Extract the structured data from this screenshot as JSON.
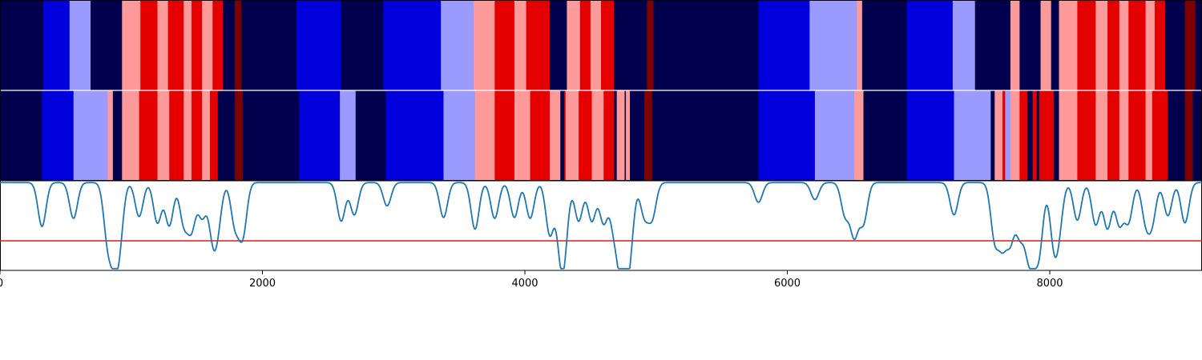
{
  "chart_data": {
    "type": "heatmap",
    "xlim": [
      0,
      9160
    ],
    "x_ticks": [
      "0",
      "2000",
      "4000",
      "6000",
      "8000"
    ],
    "x_tick_values": [
      0,
      2000,
      4000,
      6000,
      8000
    ],
    "segment_palette": {
      "0": "#00004c",
      "1": "#0000dd",
      "2": "#9a9aff",
      "3": "#ff9a9a",
      "4": "#e50000",
      "5": "#7f0000"
    },
    "rows": [
      {
        "segments": [
          [
            0,
            330,
            0
          ],
          [
            330,
            530,
            1
          ],
          [
            530,
            690,
            2
          ],
          [
            690,
            930,
            0
          ],
          [
            930,
            1070,
            3
          ],
          [
            1070,
            1200,
            4
          ],
          [
            1200,
            1280,
            3
          ],
          [
            1280,
            1400,
            4
          ],
          [
            1400,
            1460,
            3
          ],
          [
            1460,
            1540,
            4
          ],
          [
            1540,
            1620,
            3
          ],
          [
            1620,
            1700,
            4
          ],
          [
            1700,
            1790,
            0
          ],
          [
            1790,
            1840,
            5
          ],
          [
            1840,
            2260,
            0
          ],
          [
            2260,
            2600,
            1
          ],
          [
            2600,
            2920,
            0
          ],
          [
            2920,
            3360,
            1
          ],
          [
            3360,
            3610,
            2
          ],
          [
            3610,
            3770,
            3
          ],
          [
            3770,
            3920,
            4
          ],
          [
            3920,
            4010,
            3
          ],
          [
            4010,
            4190,
            4
          ],
          [
            4190,
            4320,
            0
          ],
          [
            4320,
            4420,
            3
          ],
          [
            4420,
            4500,
            4
          ],
          [
            4500,
            4580,
            3
          ],
          [
            4580,
            4680,
            4
          ],
          [
            4680,
            4930,
            0
          ],
          [
            4930,
            4980,
            5
          ],
          [
            4980,
            5780,
            0
          ],
          [
            5780,
            6170,
            1
          ],
          [
            6170,
            6530,
            2
          ],
          [
            6530,
            6570,
            3
          ],
          [
            6570,
            6910,
            0
          ],
          [
            6910,
            7260,
            1
          ],
          [
            7260,
            7430,
            2
          ],
          [
            7430,
            7700,
            0
          ],
          [
            7700,
            7770,
            3
          ],
          [
            7770,
            7930,
            0
          ],
          [
            7930,
            8010,
            3
          ],
          [
            8010,
            8070,
            0
          ],
          [
            8070,
            8210,
            3
          ],
          [
            8210,
            8350,
            4
          ],
          [
            8350,
            8440,
            3
          ],
          [
            8440,
            8530,
            4
          ],
          [
            8530,
            8600,
            3
          ],
          [
            8600,
            8730,
            4
          ],
          [
            8730,
            8800,
            3
          ],
          [
            8800,
            8880,
            4
          ],
          [
            8880,
            9030,
            0
          ],
          [
            9030,
            9110,
            5
          ],
          [
            9110,
            9160,
            0
          ]
        ]
      },
      {
        "segments": [
          [
            0,
            320,
            0
          ],
          [
            320,
            560,
            1
          ],
          [
            560,
            820,
            2
          ],
          [
            820,
            860,
            3
          ],
          [
            860,
            930,
            0
          ],
          [
            930,
            1060,
            3
          ],
          [
            1060,
            1200,
            4
          ],
          [
            1200,
            1290,
            3
          ],
          [
            1290,
            1400,
            4
          ],
          [
            1400,
            1460,
            3
          ],
          [
            1460,
            1540,
            4
          ],
          [
            1540,
            1600,
            3
          ],
          [
            1600,
            1660,
            4
          ],
          [
            1660,
            1790,
            0
          ],
          [
            1790,
            1850,
            5
          ],
          [
            1850,
            2280,
            0
          ],
          [
            2280,
            2590,
            1
          ],
          [
            2590,
            2710,
            2
          ],
          [
            2710,
            2940,
            0
          ],
          [
            2940,
            3380,
            1
          ],
          [
            3380,
            3620,
            2
          ],
          [
            3620,
            3770,
            3
          ],
          [
            3770,
            3920,
            4
          ],
          [
            3920,
            4040,
            3
          ],
          [
            4040,
            4190,
            4
          ],
          [
            4190,
            4270,
            3
          ],
          [
            4270,
            4300,
            0
          ],
          [
            4300,
            4310,
            4
          ],
          [
            4310,
            4410,
            3
          ],
          [
            4410,
            4510,
            4
          ],
          [
            4510,
            4600,
            3
          ],
          [
            4600,
            4680,
            4
          ],
          [
            4680,
            4700,
            0
          ],
          [
            4700,
            4760,
            3
          ],
          [
            4760,
            4770,
            0
          ],
          [
            4770,
            4800,
            3
          ],
          [
            4800,
            4910,
            0
          ],
          [
            4910,
            4970,
            5
          ],
          [
            4970,
            5780,
            0
          ],
          [
            5780,
            6210,
            1
          ],
          [
            6210,
            6510,
            2
          ],
          [
            6510,
            6580,
            3
          ],
          [
            6580,
            6910,
            0
          ],
          [
            6910,
            7270,
            1
          ],
          [
            7270,
            7550,
            2
          ],
          [
            7550,
            7580,
            0
          ],
          [
            7580,
            7640,
            3
          ],
          [
            7640,
            7660,
            4
          ],
          [
            7660,
            7700,
            2
          ],
          [
            7700,
            7770,
            3
          ],
          [
            7770,
            7830,
            4
          ],
          [
            7830,
            7870,
            0
          ],
          [
            7870,
            7900,
            4
          ],
          [
            7900,
            7920,
            0
          ],
          [
            7920,
            8030,
            4
          ],
          [
            8030,
            8070,
            0
          ],
          [
            8070,
            8210,
            3
          ],
          [
            8210,
            8350,
            4
          ],
          [
            8350,
            8440,
            3
          ],
          [
            8440,
            8530,
            4
          ],
          [
            8530,
            8600,
            3
          ],
          [
            8600,
            8730,
            4
          ],
          [
            8730,
            8780,
            3
          ],
          [
            8780,
            8900,
            4
          ],
          [
            8900,
            9030,
            0
          ],
          [
            9030,
            9090,
            5
          ],
          [
            9090,
            9160,
            0
          ]
        ]
      }
    ],
    "line_panel": {
      "ylim": [
        0,
        1
      ],
      "threshold": 0.33,
      "line_color": "#1f77b4",
      "threshold_color": "#e41a1c",
      "baseline": 0.98,
      "dips": [
        [
          320,
          0.49
        ],
        [
          560,
          0.58
        ],
        [
          820,
          0.37
        ],
        [
          870,
          0.36
        ],
        [
          910,
          0.39
        ],
        [
          1060,
          0.6
        ],
        [
          1200,
          0.53
        ],
        [
          1290,
          0.5
        ],
        [
          1400,
          0.54
        ],
        [
          1460,
          0.48
        ],
        [
          1540,
          0.6
        ],
        [
          1620,
          0.45
        ],
        [
          1660,
          0.57
        ],
        [
          1790,
          0.52
        ],
        [
          1850,
          0.4
        ],
        [
          2600,
          0.55
        ],
        [
          2700,
          0.62
        ],
        [
          2950,
          0.72
        ],
        [
          3380,
          0.59
        ],
        [
          3620,
          0.46
        ],
        [
          3770,
          0.58
        ],
        [
          3920,
          0.59
        ],
        [
          4040,
          0.58
        ],
        [
          4190,
          0.4
        ],
        [
          4270,
          0.42
        ],
        [
          4300,
          0.38
        ],
        [
          4410,
          0.55
        ],
        [
          4510,
          0.55
        ],
        [
          4600,
          0.53
        ],
        [
          4680,
          0.5
        ],
        [
          4730,
          0.35
        ],
        [
          4760,
          0.36
        ],
        [
          4800,
          0.33
        ],
        [
          4910,
          0.62
        ],
        [
          4970,
          0.6
        ],
        [
          5780,
          0.76
        ],
        [
          6210,
          0.79
        ],
        [
          6440,
          0.62
        ],
        [
          6510,
          0.4
        ],
        [
          6580,
          0.54
        ],
        [
          7270,
          0.62
        ],
        [
          7580,
          0.37
        ],
        [
          7640,
          0.36
        ],
        [
          7700,
          0.38
        ],
        [
          7770,
          0.45
        ],
        [
          7830,
          0.42
        ],
        [
          7870,
          0.41
        ],
        [
          7920,
          0.28
        ],
        [
          8030,
          0.38
        ],
        [
          8070,
          0.55
        ],
        [
          8210,
          0.56
        ],
        [
          8350,
          0.51
        ],
        [
          8440,
          0.47
        ],
        [
          8530,
          0.52
        ],
        [
          8600,
          0.55
        ],
        [
          8730,
          0.58
        ],
        [
          8780,
          0.57
        ],
        [
          8900,
          0.61
        ],
        [
          9030,
          0.53
        ]
      ]
    }
  }
}
